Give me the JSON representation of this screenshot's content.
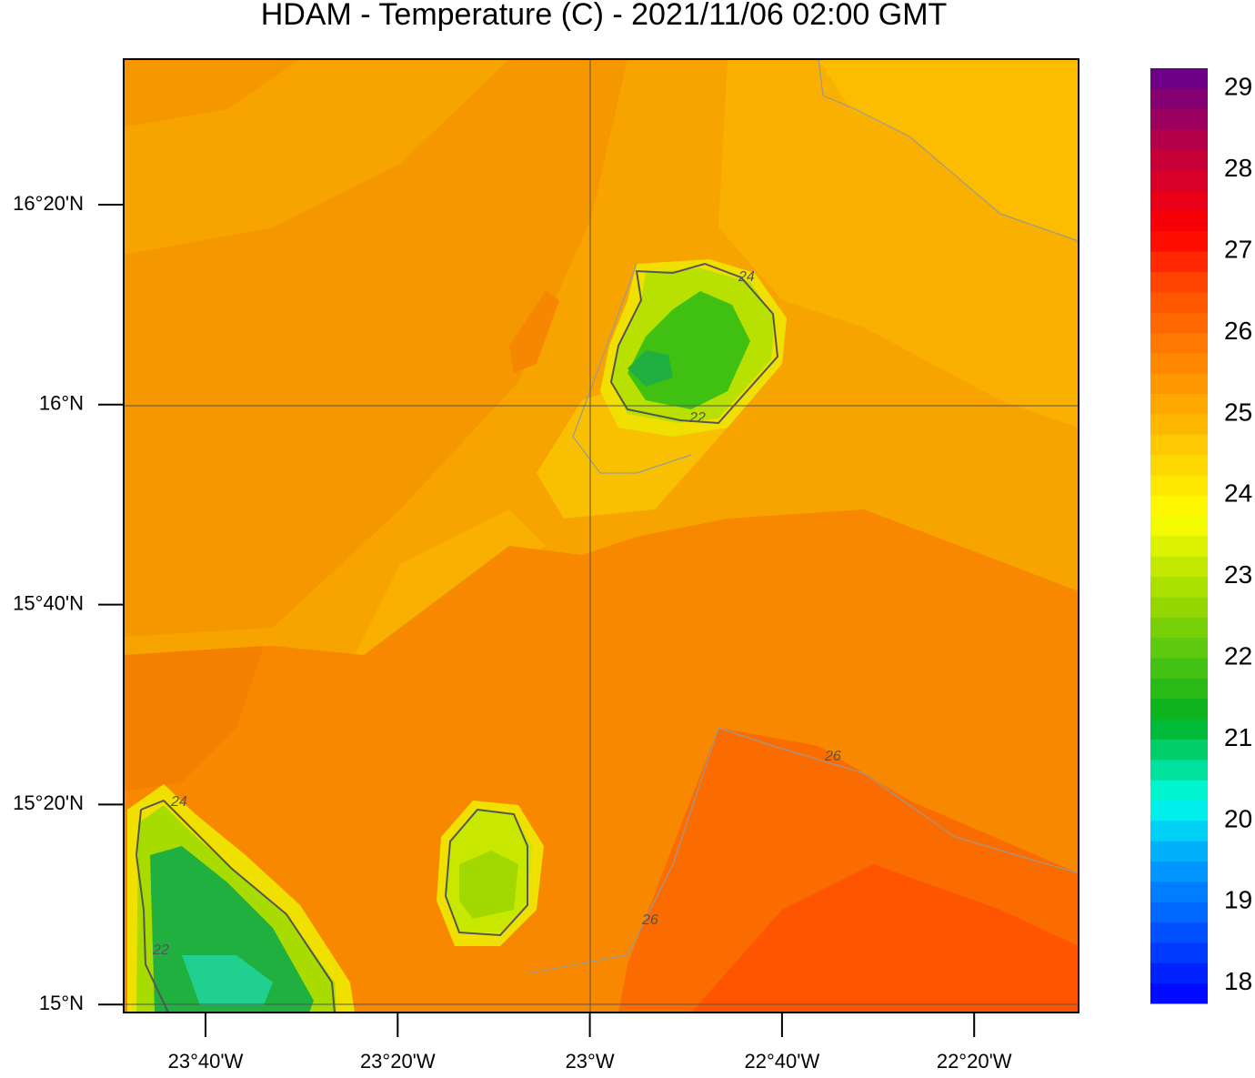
{
  "title": "HDAM - Temperature (C)  -  2021/11/06  02:00 GMT",
  "map": {
    "lon_ticks": [
      "23°40'W",
      "23°20'W",
      "23°W",
      "22°40'W",
      "22°20'W"
    ],
    "lat_ticks": [
      "16°20'N",
      "16°N",
      "15°40'N",
      "15°20'N",
      "15°N"
    ],
    "contour_labels": [
      "24",
      "22",
      "24",
      "22",
      "26",
      "26"
    ]
  },
  "colorbar": {
    "lim": [
      17.75,
      29.25
    ],
    "step": 0.25,
    "ticks": [
      18,
      19,
      20,
      21,
      22,
      23,
      24,
      25,
      26,
      27,
      28,
      29
    ],
    "stops": [
      {
        "value": 17.75,
        "color": "#0000ff"
      },
      {
        "value": 19.5,
        "color": "#00a0ff"
      },
      {
        "value": 20.25,
        "color": "#00ffe8"
      },
      {
        "value": 21.25,
        "color": "#00b020"
      },
      {
        "value": 22.75,
        "color": "#a0dc00"
      },
      {
        "value": 23.75,
        "color": "#ffff00"
      },
      {
        "value": 25.25,
        "color": "#ffa000"
      },
      {
        "value": 26.5,
        "color": "#ff5000"
      },
      {
        "value": 27.25,
        "color": "#ff0000"
      },
      {
        "value": 28.25,
        "color": "#c00040"
      },
      {
        "value": 29.25,
        "color": "#600090"
      }
    ]
  }
}
